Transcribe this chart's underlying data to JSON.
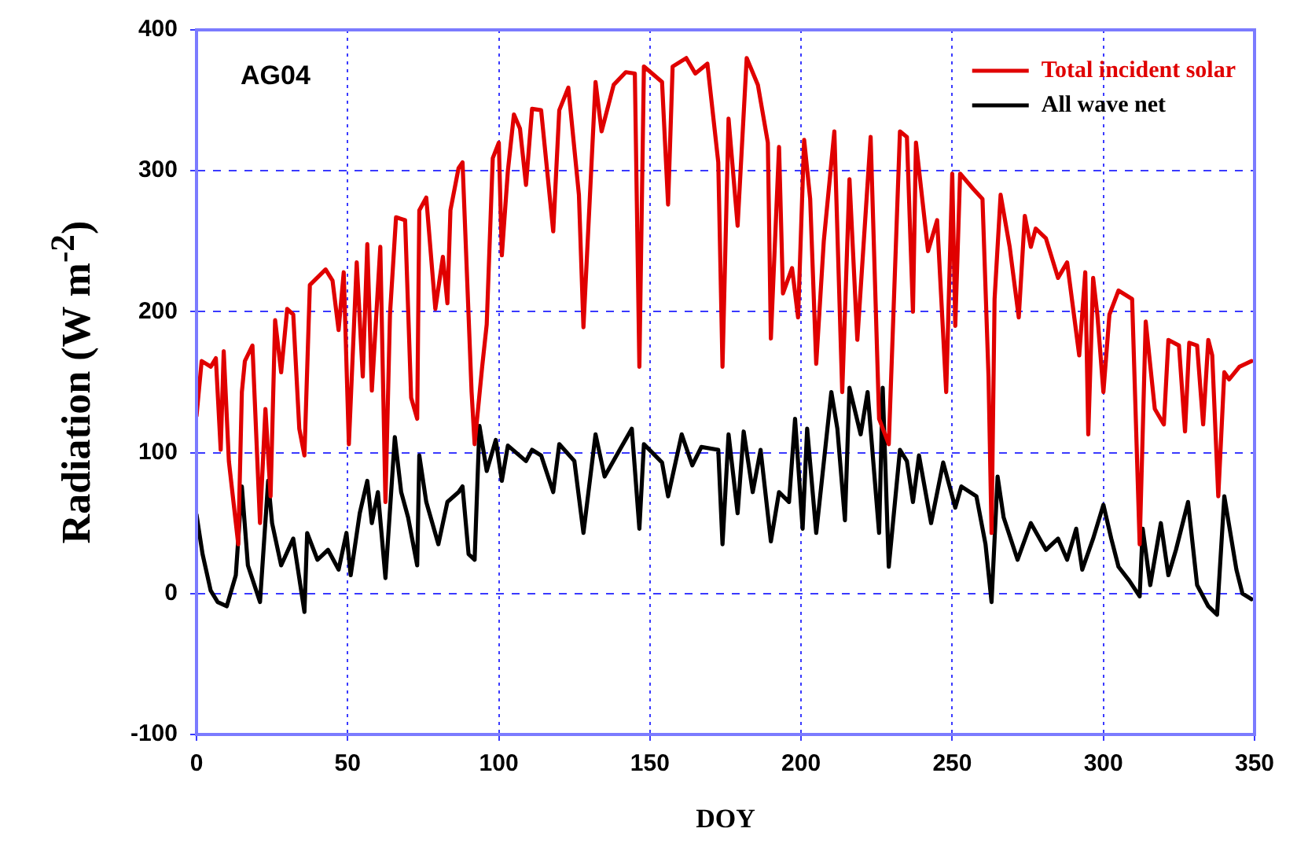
{
  "chart_data": {
    "type": "line",
    "xlabel": "DOY",
    "ylabel": "Radiation (W m$^{-2}$)",
    "annotations": [
      "AG04"
    ],
    "xlim": [
      0,
      350
    ],
    "xticks": [
      0,
      50,
      100,
      150,
      200,
      250,
      300,
      350
    ],
    "ylim": [
      -100,
      400
    ],
    "yticks": [
      -100,
      0,
      100,
      200,
      300,
      400
    ],
    "grid": true,
    "legend": "top right",
    "marker": "none",
    "line_style": "solid",
    "series": [
      {
        "name": "Total incident solar",
        "color": "#e00000",
        "x": [
          0,
          1.7,
          4.7,
          6.4,
          8,
          9,
          10.7,
          13.8,
          15,
          16,
          18.5,
          21,
          22.8,
          24.5,
          26,
          28,
          30,
          32,
          34,
          35.7,
          37.5,
          42.7,
          45,
          47,
          48.7,
          50.4,
          53,
          55,
          56.5,
          58,
          60.8,
          62.5,
          64,
          66,
          69,
          71,
          73,
          73.7,
          76,
          79,
          81.5,
          83,
          84,
          86.7,
          88,
          91,
          92,
          94.5,
          96,
          98,
          100,
          101,
          103,
          105,
          107,
          109,
          111,
          114,
          118,
          120,
          123,
          126.5,
          128,
          132,
          134,
          138,
          142,
          145,
          146.5,
          148,
          154,
          156,
          157.5,
          162,
          165,
          169,
          172.6,
          174,
          176,
          179,
          182,
          185.7,
          189,
          190,
          192.7,
          194,
          197,
          199,
          201,
          203,
          205,
          207.5,
          211,
          213.6,
          216,
          218.6,
          223,
          225.8,
          229,
          232.7,
          235,
          237,
          238,
          242,
          245,
          248,
          250,
          251,
          252.6,
          257,
          260,
          262,
          263,
          264,
          266,
          269,
          272,
          274,
          276,
          277.6,
          281,
          285,
          288,
          292,
          294,
          295,
          296.6,
          298,
          300,
          302,
          305,
          309.5,
          312,
          314,
          317,
          320,
          321.5,
          325,
          327,
          328.4,
          331,
          333,
          334.7,
          336,
          338,
          340,
          341.6,
          345,
          349
        ],
        "values": [
          126,
          165,
          161,
          167,
          102,
          172,
          94,
          35,
          143,
          165,
          176,
          50,
          131,
          69,
          194,
          157,
          202,
          198,
          117,
          98,
          219,
          230,
          222,
          187,
          228,
          106,
          235,
          154,
          248,
          144,
          246,
          65,
          198,
          267,
          265,
          139,
          124,
          272,
          281,
          202,
          239,
          206,
          272,
          302,
          306,
          143,
          106,
          161,
          191,
          309,
          320,
          240,
          300,
          340,
          330,
          290,
          344,
          343,
          257,
          343,
          359,
          283,
          189,
          363,
          328,
          361,
          370,
          369,
          161,
          374,
          363,
          276,
          374,
          380,
          369,
          376,
          306,
          161,
          337,
          261,
          380,
          361,
          320,
          181,
          317,
          213,
          231,
          196,
          322,
          280,
          163,
          250,
          328,
          143,
          294,
          180,
          324,
          124,
          106,
          328,
          324,
          200,
          320,
          243,
          265,
          143,
          298,
          190,
          298,
          287,
          280,
          154,
          43,
          209,
          283,
          246,
          196,
          268,
          246,
          259,
          252,
          224,
          235,
          169,
          228,
          113,
          224,
          198,
          143,
          198,
          215,
          209,
          35,
          193,
          131,
          120,
          180,
          176,
          115,
          178,
          176,
          120,
          180,
          169,
          69,
          157,
          152,
          161,
          165
        ]
      },
      {
        "name": "All wave net",
        "color": "#000000",
        "x": [
          0,
          2,
          4.7,
          7,
          10,
          13,
          15,
          17,
          21,
          23.7,
          25,
          28,
          32,
          35.7,
          36.6,
          40,
          43.5,
          47,
          49.6,
          51,
          54,
          56.5,
          58,
          60,
          62.5,
          65.6,
          67.7,
          70,
          73,
          73.7,
          76,
          80,
          83,
          86.7,
          88,
          90,
          92,
          93.6,
          96,
          99,
          101,
          103,
          109,
          111,
          114,
          118,
          120,
          125,
          128,
          132,
          135,
          140,
          144,
          146.5,
          148,
          154,
          156,
          160.5,
          164,
          167,
          172.6,
          174,
          176,
          179,
          181,
          184,
          186.6,
          190,
          192.7,
          196,
          198,
          200.5,
          202,
          205,
          210,
          212,
          214.5,
          216,
          219.7,
          222,
          225.8,
          227,
          229,
          232.7,
          235,
          237,
          239,
          243,
          247,
          251,
          253,
          258,
          261,
          263,
          265,
          267,
          271.6,
          276,
          281,
          285,
          288,
          291,
          293,
          296.6,
          300,
          302.6,
          305,
          308.6,
          312,
          313,
          315.5,
          319,
          321.5,
          324,
          328,
          331,
          334.7,
          337.6,
          340,
          344,
          346,
          349
        ],
        "values": [
          56,
          28,
          2,
          -6,
          -9,
          13,
          76,
          20,
          -6,
          80,
          50,
          20,
          39,
          -13,
          43,
          24,
          31,
          17,
          43,
          13,
          57,
          80,
          50,
          72,
          11,
          111,
          72,
          54,
          20,
          98,
          65,
          35,
          65,
          72,
          76,
          28,
          24,
          119,
          87,
          109,
          80,
          105,
          94,
          102,
          98,
          72,
          106,
          94,
          43,
          113,
          83,
          102,
          117,
          46,
          106,
          93,
          69,
          113,
          91,
          104,
          102,
          35,
          113,
          57,
          115,
          72,
          102,
          37,
          72,
          65,
          124,
          46,
          117,
          43,
          143,
          117,
          52,
          146,
          113,
          143,
          43,
          146,
          19,
          102,
          94,
          65,
          98,
          50,
          93,
          61,
          76,
          69,
          35,
          -6,
          83,
          54,
          24,
          50,
          31,
          39,
          24,
          46,
          17,
          39,
          63,
          39,
          19,
          9,
          -2,
          46,
          6,
          50,
          13,
          31,
          65,
          6,
          -9,
          -15,
          69,
          17,
          0,
          -4
        ]
      }
    ]
  }
}
